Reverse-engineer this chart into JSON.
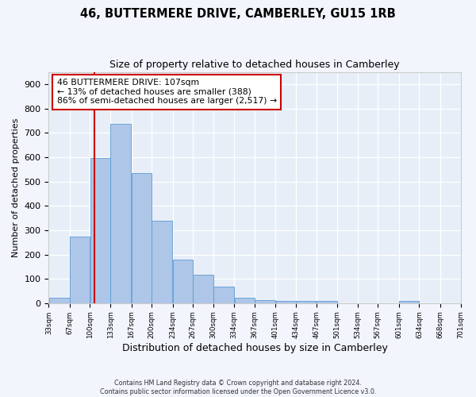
{
  "title": "46, BUTTERMERE DRIVE, CAMBERLEY, GU15 1RB",
  "subtitle": "Size of property relative to detached houses in Camberley",
  "xlabel": "Distribution of detached houses by size in Camberley",
  "ylabel": "Number of detached properties",
  "bin_edges": [
    33,
    67,
    100,
    133,
    167,
    200,
    234,
    267,
    300,
    334,
    367,
    401,
    434,
    467,
    501,
    534,
    567,
    601,
    634,
    668,
    701
  ],
  "bar_heights": [
    22,
    275,
    597,
    738,
    535,
    340,
    178,
    118,
    67,
    22,
    12,
    10,
    10,
    8,
    0,
    0,
    0,
    8,
    0,
    0
  ],
  "bar_color": "#aec6e8",
  "bar_edgecolor": "#5b9bd5",
  "vline_x": 107,
  "vline_color": "#cc0000",
  "annotation_line1": "46 BUTTERMERE DRIVE: 107sqm",
  "annotation_line2": "← 13% of detached houses are smaller (388)",
  "annotation_line3": "86% of semi-detached houses are larger (2,517) →",
  "annotation_box_color": "#cc0000",
  "ylim": [
    0,
    950
  ],
  "yticks": [
    0,
    100,
    200,
    300,
    400,
    500,
    600,
    700,
    800,
    900
  ],
  "tick_labels": [
    "33sqm",
    "67sqm",
    "100sqm",
    "133sqm",
    "167sqm",
    "200sqm",
    "234sqm",
    "267sqm",
    "300sqm",
    "334sqm",
    "367sqm",
    "401sqm",
    "434sqm",
    "467sqm",
    "501sqm",
    "534sqm",
    "567sqm",
    "601sqm",
    "634sqm",
    "668sqm",
    "701sqm"
  ],
  "bg_color": "#f2f5fc",
  "plot_bg_color": "#e8eef8",
  "footer": "Contains HM Land Registry data © Crown copyright and database right 2024.\nContains public sector information licensed under the Open Government Licence v3.0.",
  "title_fontsize": 10.5,
  "subtitle_fontsize": 9,
  "ylabel_fontsize": 8,
  "xlabel_fontsize": 9
}
